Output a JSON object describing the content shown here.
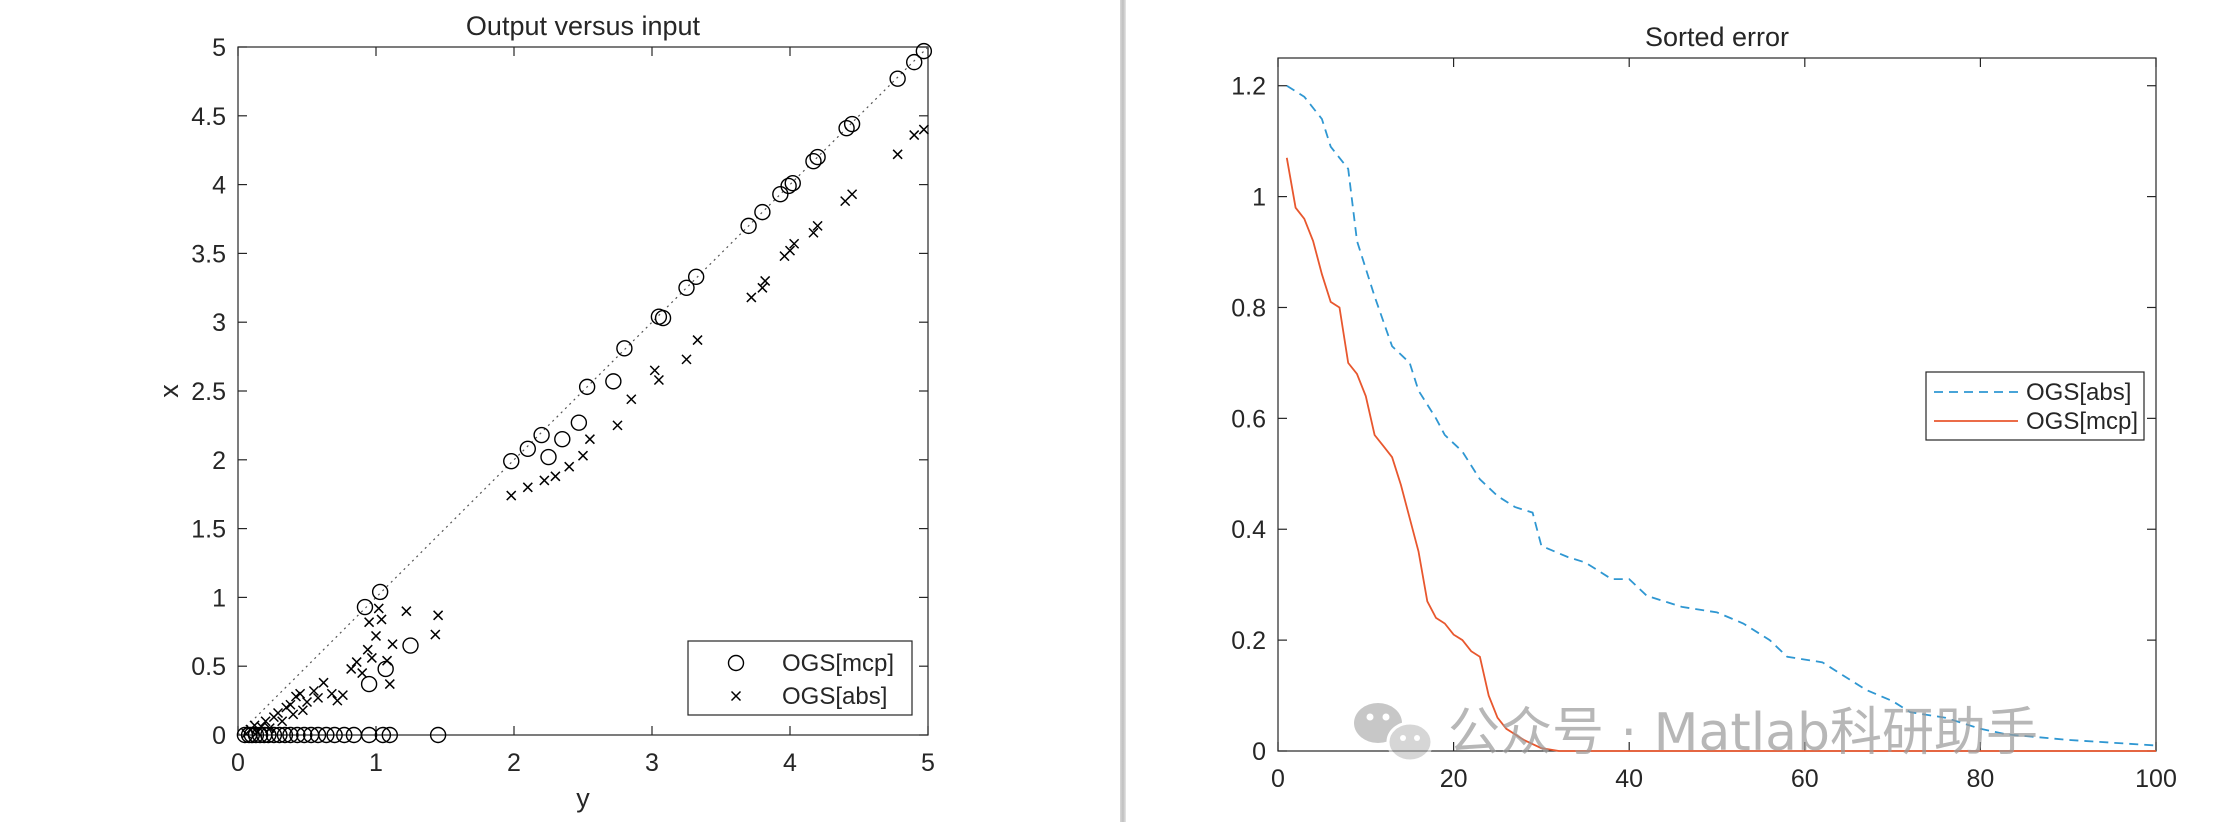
{
  "chart_data": [
    {
      "type": "scatter",
      "title": "Output versus input",
      "xlabel": "y",
      "ylabel": "x",
      "xlim": [
        0,
        5
      ],
      "ylim": [
        0,
        5
      ],
      "xticks": [
        0,
        1,
        2,
        3,
        4,
        5
      ],
      "yticks": [
        0,
        0.5,
        1,
        1.5,
        2,
        2.5,
        3,
        3.5,
        4,
        4.5,
        5
      ],
      "xtick_labels": [
        "0",
        "1",
        "2",
        "3",
        "4",
        "5"
      ],
      "ytick_labels": [
        "0",
        "0.5",
        "1",
        "1.5",
        "2",
        "2.5",
        "3",
        "3.5",
        "4",
        "4.5",
        "5"
      ],
      "reference_line": {
        "style": "dotted",
        "from": [
          0,
          0
        ],
        "to": [
          5,
          5
        ]
      },
      "legend": {
        "placement": "bottom-right"
      },
      "series": [
        {
          "name": "OGS[mcp]",
          "marker": "circle",
          "points": [
            [
              0.05,
              0
            ],
            [
              0.08,
              0
            ],
            [
              0.1,
              0
            ],
            [
              0.13,
              0
            ],
            [
              0.16,
              0
            ],
            [
              0.19,
              0
            ],
            [
              0.22,
              0
            ],
            [
              0.26,
              0
            ],
            [
              0.3,
              0
            ],
            [
              0.34,
              0
            ],
            [
              0.38,
              0
            ],
            [
              0.43,
              0
            ],
            [
              0.48,
              0
            ],
            [
              0.53,
              0
            ],
            [
              0.58,
              0
            ],
            [
              0.64,
              0
            ],
            [
              0.7,
              0
            ],
            [
              0.77,
              0
            ],
            [
              0.84,
              0
            ],
            [
              0.95,
              0
            ],
            [
              1.05,
              0
            ],
            [
              1.1,
              0
            ],
            [
              1.45,
              0
            ],
            [
              0.95,
              0.37
            ],
            [
              1.07,
              0.48
            ],
            [
              1.25,
              0.65
            ],
            [
              0.92,
              0.93
            ],
            [
              1.03,
              1.04
            ],
            [
              1.98,
              1.99
            ],
            [
              2.1,
              2.08
            ],
            [
              2.2,
              2.18
            ],
            [
              2.25,
              2.02
            ],
            [
              2.35,
              2.15
            ],
            [
              2.47,
              2.27
            ],
            [
              2.53,
              2.53
            ],
            [
              2.72,
              2.57
            ],
            [
              2.8,
              2.81
            ],
            [
              3.05,
              3.04
            ],
            [
              3.08,
              3.03
            ],
            [
              3.25,
              3.25
            ],
            [
              3.32,
              3.33
            ],
            [
              3.7,
              3.7
            ],
            [
              3.8,
              3.8
            ],
            [
              3.93,
              3.93
            ],
            [
              3.99,
              3.99
            ],
            [
              4.02,
              4.01
            ],
            [
              4.17,
              4.17
            ],
            [
              4.2,
              4.2
            ],
            [
              4.41,
              4.41
            ],
            [
              4.45,
              4.44
            ],
            [
              4.78,
              4.77
            ],
            [
              4.9,
              4.89
            ],
            [
              4.97,
              4.97
            ]
          ]
        },
        {
          "name": "OGS[abs]",
          "marker": "x",
          "points": [
            [
              0.06,
              0.01
            ],
            [
              0.09,
              0.04
            ],
            [
              0.12,
              0.07
            ],
            [
              0.14,
              0.02
            ],
            [
              0.17,
              0.06
            ],
            [
              0.2,
              0.1
            ],
            [
              0.23,
              0.05
            ],
            [
              0.26,
              0.13
            ],
            [
              0.29,
              0.16
            ],
            [
              0.32,
              0.1
            ],
            [
              0.35,
              0.2
            ],
            [
              0.38,
              0.22
            ],
            [
              0.4,
              0.15
            ],
            [
              0.42,
              0.28
            ],
            [
              0.45,
              0.3
            ],
            [
              0.47,
              0.18
            ],
            [
              0.5,
              0.24
            ],
            [
              0.55,
              0.32
            ],
            [
              0.58,
              0.27
            ],
            [
              0.62,
              0.38
            ],
            [
              0.68,
              0.3
            ],
            [
              0.72,
              0.25
            ],
            [
              0.76,
              0.29
            ],
            [
              0.82,
              0.48
            ],
            [
              0.86,
              0.53
            ],
            [
              0.9,
              0.45
            ],
            [
              0.94,
              0.62
            ],
            [
              0.97,
              0.56
            ],
            [
              1.0,
              0.72
            ],
            [
              1.04,
              0.84
            ],
            [
              1.08,
              0.54
            ],
            [
              1.12,
              0.66
            ],
            [
              1.02,
              0.92
            ],
            [
              1.22,
              0.9
            ],
            [
              1.43,
              0.73
            ],
            [
              1.45,
              0.87
            ],
            [
              1.1,
              0.37
            ],
            [
              0.95,
              0.82
            ],
            [
              1.98,
              1.74
            ],
            [
              2.1,
              1.8
            ],
            [
              2.22,
              1.85
            ],
            [
              2.3,
              1.88
            ],
            [
              2.4,
              1.95
            ],
            [
              2.5,
              2.03
            ],
            [
              2.55,
              2.15
            ],
            [
              2.75,
              2.25
            ],
            [
              2.85,
              2.44
            ],
            [
              3.02,
              2.65
            ],
            [
              3.05,
              2.58
            ],
            [
              3.25,
              2.73
            ],
            [
              3.33,
              2.87
            ],
            [
              3.72,
              3.18
            ],
            [
              3.8,
              3.25
            ],
            [
              3.82,
              3.3
            ],
            [
              3.96,
              3.48
            ],
            [
              4.0,
              3.52
            ],
            [
              4.03,
              3.57
            ],
            [
              4.17,
              3.65
            ],
            [
              4.2,
              3.7
            ],
            [
              4.4,
              3.88
            ],
            [
              4.45,
              3.93
            ],
            [
              4.78,
              4.22
            ],
            [
              4.9,
              4.36
            ],
            [
              4.97,
              4.4
            ]
          ]
        }
      ]
    },
    {
      "type": "line",
      "title": "Sorted error",
      "xlabel": "",
      "ylabel": "",
      "xlim": [
        0,
        100
      ],
      "ylim": [
        0,
        1.25
      ],
      "xticks": [
        0,
        20,
        40,
        60,
        80,
        100
      ],
      "yticks": [
        0,
        0.2,
        0.4,
        0.6,
        0.8,
        1,
        1.2
      ],
      "xtick_labels": [
        "0",
        "20",
        "40",
        "60",
        "80",
        "100"
      ],
      "ytick_labels": [
        "0",
        "0.2",
        "0.4",
        "0.6",
        "0.8",
        "1",
        "1.2"
      ],
      "legend": {
        "placement": "right"
      },
      "series": [
        {
          "name": "OGS[abs]",
          "color": "#2f97d2",
          "style": "dashed",
          "points": [
            [
              1,
              1.2
            ],
            [
              3,
              1.18
            ],
            [
              5,
              1.14
            ],
            [
              6,
              1.09
            ],
            [
              8,
              1.05
            ],
            [
              9,
              0.92
            ],
            [
              11,
              0.82
            ],
            [
              13,
              0.73
            ],
            [
              15,
              0.7
            ],
            [
              16,
              0.65
            ],
            [
              18,
              0.6
            ],
            [
              19,
              0.57
            ],
            [
              21,
              0.54
            ],
            [
              23,
              0.49
            ],
            [
              25,
              0.46
            ],
            [
              27,
              0.44
            ],
            [
              29,
              0.43
            ],
            [
              30,
              0.37
            ],
            [
              33,
              0.35
            ],
            [
              35,
              0.34
            ],
            [
              38,
              0.31
            ],
            [
              40,
              0.31
            ],
            [
              42,
              0.28
            ],
            [
              44,
              0.27
            ],
            [
              46,
              0.26
            ],
            [
              50,
              0.25
            ],
            [
              53,
              0.23
            ],
            [
              56,
              0.2
            ],
            [
              58,
              0.17
            ],
            [
              62,
              0.16
            ],
            [
              64,
              0.14
            ],
            [
              67,
              0.11
            ],
            [
              70,
              0.09
            ],
            [
              72,
              0.07
            ],
            [
              76,
              0.06
            ],
            [
              80,
              0.04
            ],
            [
              83,
              0.03
            ],
            [
              90,
              0.02
            ],
            [
              95,
              0.015
            ],
            [
              100,
              0.01
            ]
          ]
        },
        {
          "name": "OGS[mcp]",
          "color": "#e8572e",
          "style": "solid",
          "points": [
            [
              1,
              1.07
            ],
            [
              2,
              0.98
            ],
            [
              3,
              0.96
            ],
            [
              4,
              0.92
            ],
            [
              5,
              0.86
            ],
            [
              6,
              0.81
            ],
            [
              7,
              0.8
            ],
            [
              8,
              0.7
            ],
            [
              9,
              0.68
            ],
            [
              10,
              0.64
            ],
            [
              11,
              0.57
            ],
            [
              12,
              0.55
            ],
            [
              13,
              0.53
            ],
            [
              14,
              0.48
            ],
            [
              15,
              0.42
            ],
            [
              16,
              0.36
            ],
            [
              17,
              0.27
            ],
            [
              18,
              0.24
            ],
            [
              19,
              0.23
            ],
            [
              20,
              0.21
            ],
            [
              21,
              0.2
            ],
            [
              22,
              0.18
            ],
            [
              23,
              0.17
            ],
            [
              24,
              0.1
            ],
            [
              25,
              0.06
            ],
            [
              26,
              0.04
            ],
            [
              27,
              0.03
            ],
            [
              28,
              0.02
            ],
            [
              30,
              0.005
            ],
            [
              32,
              0
            ],
            [
              35,
              0
            ],
            [
              100,
              0
            ]
          ]
        }
      ]
    }
  ],
  "watermark": {
    "text": "公众号 · Matlab科研助手"
  }
}
